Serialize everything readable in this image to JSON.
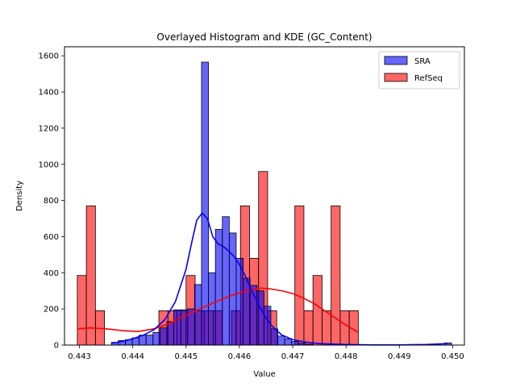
{
  "chart_data": {
    "type": "histogram",
    "title": "Overlayed Histogram and KDE (GC_Content)",
    "xlabel": "Value",
    "ylabel": "Density",
    "xlim": [
      0.44272,
      0.45022
    ],
    "ylim": [
      0,
      1650
    ],
    "x_ticks": [
      0.443,
      0.444,
      0.445,
      0.446,
      0.447,
      0.448,
      0.449,
      0.45
    ],
    "x_tick_labels": [
      "0.443",
      "0.444",
      "0.445",
      "0.446",
      "0.447",
      "0.448",
      "0.449",
      "0.450"
    ],
    "y_ticks": [
      0,
      200,
      400,
      600,
      800,
      1000,
      1200,
      1400,
      1600
    ],
    "grid": false,
    "legend_position": "top-right",
    "series": [
      {
        "name": "SRA",
        "color": "#0000ff",
        "edge_color": "#000000",
        "alpha": 0.6,
        "bin_edges": [
          0.4436,
          0.44373,
          0.44386,
          0.44399,
          0.44412,
          0.44425,
          0.44438,
          0.44451,
          0.44464,
          0.44477,
          0.4449,
          0.44503,
          0.44516,
          0.44529,
          0.44542,
          0.44555,
          0.44568,
          0.44581,
          0.44594,
          0.44607,
          0.4462,
          0.44633,
          0.44646,
          0.44659,
          0.44672,
          0.44685,
          0.44698,
          0.44711,
          0.44724,
          0.44737
        ],
        "values": [
          15,
          25,
          30,
          40,
          55,
          55,
          70,
          95,
          130,
          195,
          195,
          200,
          335,
          1565,
          400,
          640,
          710,
          620,
          480,
          370,
          330,
          300,
          215,
          90,
          50,
          35,
          20,
          10,
          5
        ],
        "extra_bins": [
          {
            "x0": 0.44985,
            "x1": 0.44998,
            "value": 12
          }
        ],
        "kde_x": [
          0.4436,
          0.4438,
          0.444,
          0.4442,
          0.4444,
          0.4446,
          0.4448,
          0.445,
          0.4451,
          0.4452,
          0.4453,
          0.4454,
          0.4455,
          0.4456,
          0.4457,
          0.4458,
          0.4459,
          0.446,
          0.4461,
          0.4462,
          0.4463,
          0.4464,
          0.4465,
          0.4466,
          0.4467,
          0.4468,
          0.447,
          0.4472,
          0.4475,
          0.448,
          0.4485,
          0.449,
          0.4495,
          0.4499
        ],
        "kde_y": [
          10,
          20,
          35,
          55,
          85,
          140,
          240,
          420,
          560,
          690,
          730,
          700,
          600,
          560,
          545,
          520,
          490,
          445,
          390,
          320,
          260,
          200,
          150,
          110,
          80,
          55,
          30,
          18,
          8,
          3,
          1,
          1,
          3,
          8
        ]
      },
      {
        "name": "RefSeq",
        "color": "#ff0000",
        "edge_color": "#000000",
        "alpha": 0.6,
        "bin_edges": [
          0.44296,
          0.44313,
          0.4433,
          0.44347,
          0.44364,
          0.44381,
          0.44398,
          0.44415,
          0.44432,
          0.44449,
          0.44466,
          0.44483,
          0.445,
          0.44517,
          0.44534,
          0.44551,
          0.44568,
          0.44585,
          0.44602,
          0.44619,
          0.44636,
          0.44653,
          0.4467,
          0.44687,
          0.44704,
          0.44721,
          0.44738,
          0.44755,
          0.44772,
          0.44789,
          0.44806,
          0.44823
        ],
        "values": [
          385,
          770,
          190,
          0,
          0,
          0,
          0,
          0,
          0,
          190,
          190,
          190,
          385,
          190,
          190,
          190,
          0,
          190,
          770,
          480,
          960,
          190,
          0,
          0,
          770,
          190,
          385,
          190,
          770,
          190,
          190
        ],
        "kde_x": [
          0.44296,
          0.4432,
          0.4435,
          0.4438,
          0.4441,
          0.4444,
          0.4447,
          0.445,
          0.4453,
          0.4456,
          0.4459,
          0.4462,
          0.4464,
          0.4466,
          0.4468,
          0.447,
          0.4472,
          0.4474,
          0.4476,
          0.4478,
          0.448,
          0.44823
        ],
        "kde_y": [
          90,
          95,
          90,
          80,
          75,
          90,
          120,
          165,
          205,
          245,
          280,
          305,
          315,
          310,
          300,
          285,
          260,
          230,
          190,
          150,
          110,
          70
        ]
      }
    ]
  }
}
